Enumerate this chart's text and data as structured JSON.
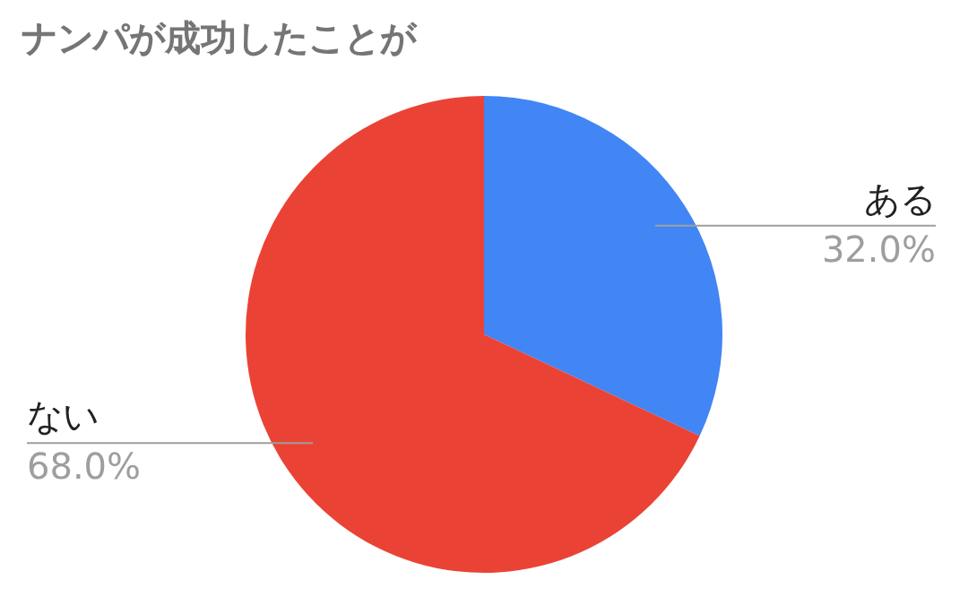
{
  "chart_data": {
    "type": "pie",
    "title": "ナンパが成功したことが",
    "categories": [
      "ある",
      "ない"
    ],
    "values": [
      32.0,
      68.0
    ],
    "colors": [
      "#4285f4",
      "#ea4335"
    ],
    "value_labels": [
      "32.0%",
      "68.0%"
    ]
  }
}
